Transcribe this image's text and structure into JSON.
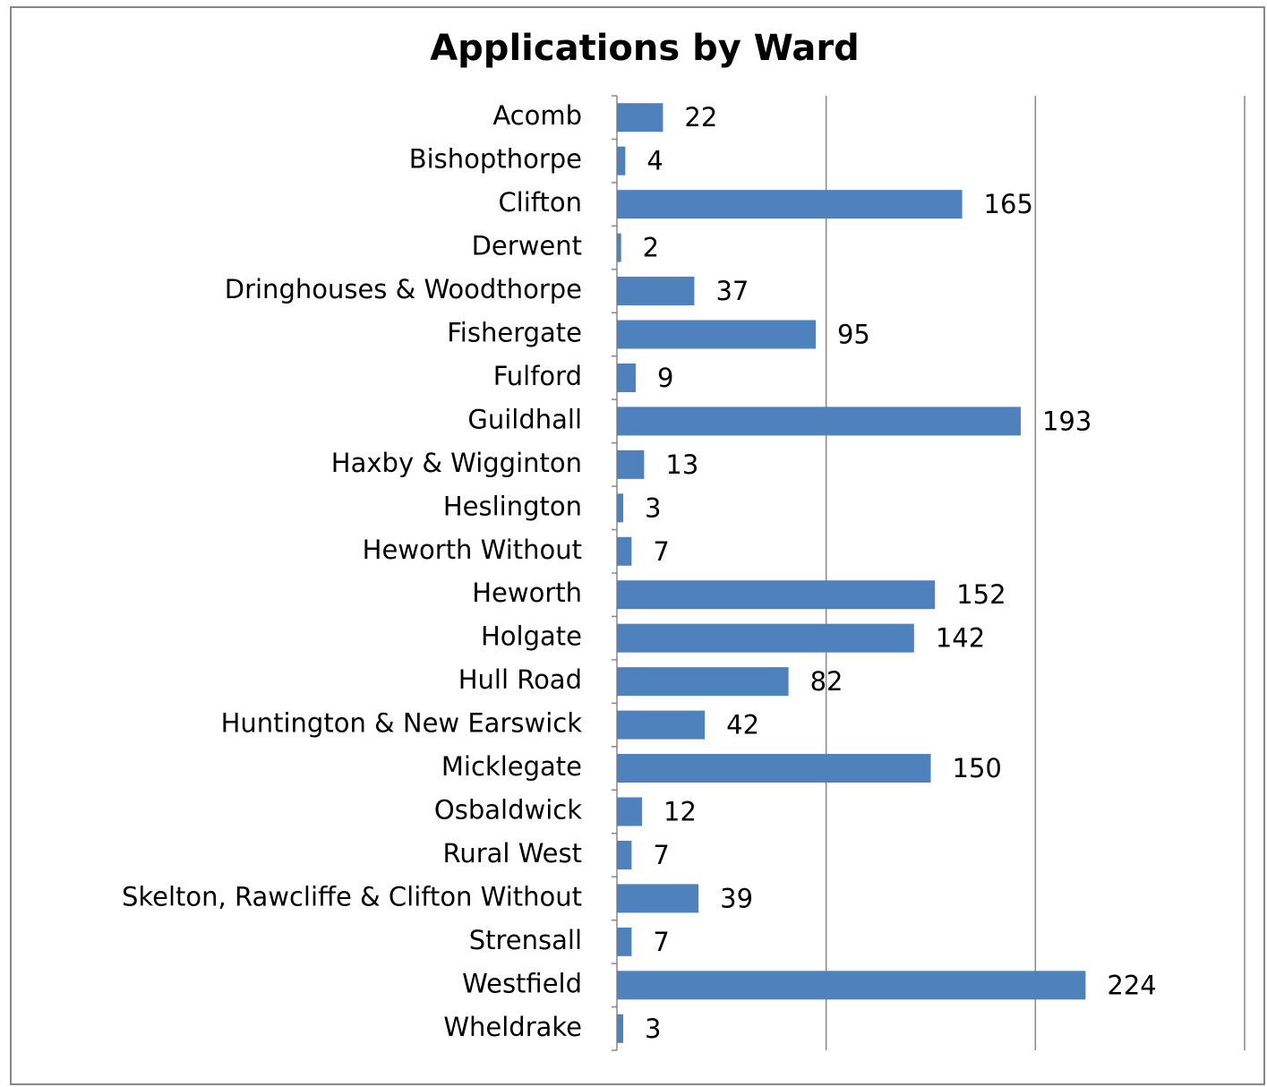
{
  "chart_data": {
    "type": "barh",
    "title": "Applications by Ward",
    "categories": [
      "Acomb",
      "Bishopthorpe",
      "Clifton",
      "Derwent",
      "Dringhouses & Woodthorpe",
      "Fishergate",
      "Fulford",
      "Guildhall",
      "Haxby & Wigginton",
      "Heslington",
      "Heworth Without",
      "Heworth",
      "Holgate",
      "Hull Road",
      "Huntington & New Earswick",
      "Micklegate",
      "Osbaldwick",
      "Rural West",
      "Skelton, Rawcliffe & Clifton Without",
      "Strensall",
      "Westfield",
      "Wheldrake"
    ],
    "values": [
      22,
      4,
      165,
      2,
      37,
      95,
      9,
      193,
      13,
      3,
      7,
      152,
      142,
      82,
      42,
      150,
      12,
      7,
      39,
      7,
      224,
      3
    ],
    "color": "#4f81bd",
    "xlim": [
      0,
      300
    ],
    "xticks": [
      0,
      100,
      200,
      300
    ],
    "grid": true
  }
}
